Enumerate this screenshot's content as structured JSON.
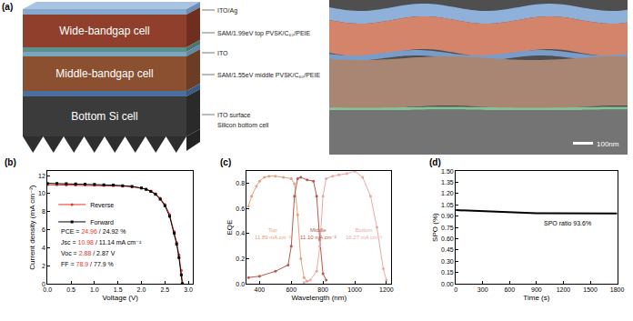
{
  "diagram": {
    "panel_label": "(a)",
    "layers": [
      "Wide-bandgap cell",
      "Middle-bandgap cell",
      "Bottom Si cell"
    ],
    "labels": [
      "ITO/Ag",
      "SAM/1.99eV top PVSK/C₆₀/PEIE",
      "ITO",
      "SAM/1.55eV middle PVSK/C₆₀/PEIE",
      "ITO surface",
      "Silicon bottom cell"
    ],
    "scale_bar": "100nm"
  },
  "chart_data": [
    {
      "type": "line",
      "panel_label": "(b)",
      "x_label": "Voltage (V)",
      "y_label": "Current density (mA cm⁻²)",
      "xlim": [
        0,
        3.1
      ],
      "ylim": [
        0,
        12.5
      ],
      "xticks": [
        {
          "value": 0,
          "label": "0.0"
        },
        0.5,
        {
          "value": 1,
          "label": "1.0"
        },
        1.5,
        {
          "value": 2,
          "label": "2.0"
        },
        2.5,
        {
          "value": 3,
          "label": "3.0"
        }
      ],
      "yticks": [
        0,
        2,
        4,
        6,
        8,
        10,
        12
      ],
      "legend": "upper left",
      "series": [
        {
          "name": "Reverse",
          "color": "#e8332a",
          "marker": "circle",
          "x": [
            0,
            0.2,
            0.4,
            0.6,
            0.8,
            1.0,
            1.2,
            1.4,
            1.6,
            1.8,
            2.0,
            2.1,
            2.2,
            2.3,
            2.4,
            2.5,
            2.6,
            2.7,
            2.75,
            2.8,
            2.85,
            2.88
          ],
          "values": [
            10.98,
            10.97,
            10.96,
            10.95,
            10.94,
            10.92,
            10.9,
            10.87,
            10.83,
            10.76,
            10.62,
            10.5,
            10.3,
            10.0,
            9.5,
            8.8,
            7.7,
            5.8,
            4.6,
            3.2,
            1.5,
            0
          ]
        },
        {
          "name": "Forward",
          "color": "#000000",
          "marker": "square",
          "x": [
            0,
            0.2,
            0.4,
            0.6,
            0.8,
            1.0,
            1.2,
            1.4,
            1.6,
            1.8,
            2.0,
            2.1,
            2.2,
            2.3,
            2.4,
            2.5,
            2.6,
            2.7,
            2.75,
            2.8,
            2.85,
            2.87
          ],
          "values": [
            11.14,
            11.12,
            11.1,
            11.08,
            11.05,
            11.02,
            10.98,
            10.94,
            10.88,
            10.8,
            10.62,
            10.48,
            10.25,
            9.92,
            9.4,
            8.65,
            7.5,
            5.6,
            4.4,
            2.9,
            1.0,
            0
          ]
        }
      ],
      "annotations": [
        {
          "parts": [
            "PCE = ",
            "24.96",
            " / 24.92 %"
          ]
        },
        {
          "parts": [
            "Jsc = ",
            "10.98",
            " / 11.14 mA cm⁻²"
          ]
        },
        {
          "parts": [
            "Voc = ",
            "2.88",
            " / 2.87 V"
          ]
        },
        {
          "parts": [
            "FF = ",
            "78.9",
            " / 77.9 %"
          ]
        }
      ]
    },
    {
      "type": "line",
      "panel_label": "(c)",
      "x_label": "Wavelength (nm)",
      "y_label": "EQE",
      "xlim": [
        320,
        1230
      ],
      "ylim": [
        0,
        0.9
      ],
      "xticks": [
        400,
        600,
        800,
        1000,
        1200
      ],
      "yticks": [
        {
          "value": 0,
          "label": "0.0"
        },
        0.2,
        0.4,
        0.6,
        0.8
      ],
      "series": [
        {
          "name": "Top",
          "color": "#e3a27f",
          "marker": "circle",
          "x": [
            330,
            350,
            380,
            400,
            430,
            460,
            500,
            550,
            600,
            620,
            640,
            660,
            680,
            700
          ],
          "values": [
            0.62,
            0.7,
            0.78,
            0.82,
            0.85,
            0.86,
            0.86,
            0.85,
            0.84,
            0.8,
            0.55,
            0.2,
            0.05,
            0.02
          ],
          "label_lines": [
            "Top",
            "11.89 mA cm⁻²"
          ]
        },
        {
          "name": "Middle",
          "color": "#b8574e",
          "marker": "circle",
          "x": [
            330,
            400,
            500,
            580,
            600,
            620,
            640,
            660,
            700,
            740,
            760,
            780,
            800,
            820
          ],
          "values": [
            0.05,
            0.06,
            0.1,
            0.15,
            0.3,
            0.7,
            0.84,
            0.85,
            0.83,
            0.82,
            0.7,
            0.35,
            0.08,
            0.03
          ],
          "label_lines": [
            "Middle",
            "11.10 mA cm⁻²"
          ]
        },
        {
          "name": "Bottom",
          "color": "#e9a8a8",
          "marker": "circle",
          "x": [
            680,
            720,
            760,
            780,
            800,
            820,
            860,
            900,
            950,
            1000,
            1050,
            1100,
            1140,
            1180,
            1200
          ],
          "values": [
            0.01,
            0.03,
            0.1,
            0.3,
            0.7,
            0.84,
            0.86,
            0.87,
            0.88,
            0.9,
            0.85,
            0.7,
            0.45,
            0.12,
            0.03
          ],
          "label_lines": [
            "Bottom",
            "16.27 mA cm⁻²"
          ]
        }
      ]
    },
    {
      "type": "line",
      "panel_label": "(d)",
      "x_label": "Time (s)",
      "y_label": "SPO (%)",
      "xlim": [
        0,
        1800
      ],
      "ylim": [
        0,
        1.5
      ],
      "xticks": [
        0,
        300,
        600,
        900,
        1200,
        1500,
        1800
      ],
      "yticks": [
        {
          "value": 0,
          "label": "0.00"
        },
        0.15,
        {
          "value": 0.3,
          "label": "0.30"
        },
        0.45,
        {
          "value": 0.6,
          "label": "0.60"
        },
        0.75,
        {
          "value": 0.9,
          "label": "0.90"
        },
        1.05,
        {
          "value": 1.2,
          "label": "1.20"
        },
        1.35,
        {
          "value": 1.5,
          "label": "1.50"
        }
      ],
      "series": [
        {
          "name": "SPO",
          "color": "#000000",
          "marker": "none",
          "x": [
            0,
            100,
            200,
            300,
            400,
            500,
            600,
            700,
            800,
            900,
            1000,
            1100,
            1200,
            1300,
            1400,
            1500,
            1600,
            1700,
            1800
          ],
          "values": [
            0.98,
            0.975,
            0.97,
            0.965,
            0.96,
            0.955,
            0.95,
            0.946,
            0.943,
            0.94,
            0.94,
            0.939,
            0.938,
            0.937,
            0.937,
            0.936,
            0.936,
            0.936,
            0.936
          ]
        }
      ],
      "annotations": [
        {
          "text": "SPO ratio 93.6%"
        }
      ]
    }
  ]
}
